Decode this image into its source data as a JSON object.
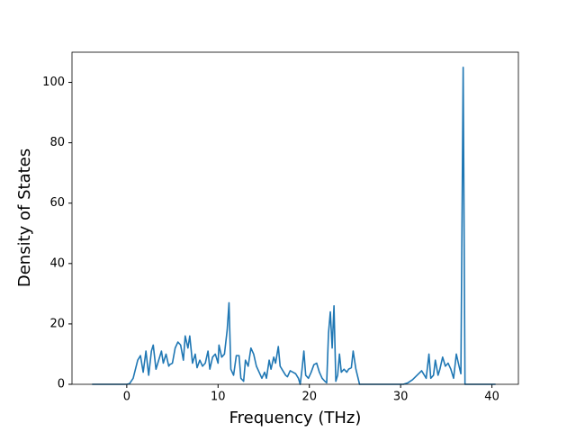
{
  "chart_data": {
    "type": "line",
    "xlabel": "Frequency (THz)",
    "ylabel": "Density of States",
    "xlim": [
      -6.0,
      42.9
    ],
    "ylim": [
      0,
      110
    ],
    "xticks": [
      0,
      10,
      20,
      30,
      40
    ],
    "yticks": [
      0,
      20,
      40,
      60,
      80,
      100
    ],
    "series": [
      {
        "color": "#1f77b4",
        "x": [
          -3.8,
          0,
          0.3,
          0.7,
          1.2,
          1.5,
          1.8,
          2.1,
          2.4,
          2.7,
          2.9,
          3.2,
          3.5,
          3.8,
          4.0,
          4.3,
          4.6,
          4.7,
          5.0,
          5.3,
          5.6,
          5.9,
          6.2,
          6.4,
          6.7,
          6.9,
          7.2,
          7.5,
          7.7,
          8.0,
          8.3,
          8.6,
          8.9,
          9.1,
          9.4,
          9.7,
          10.0,
          10.1,
          10.4,
          10.7,
          11.0,
          11.2,
          11.4,
          11.7,
          12.0,
          12.3,
          12.5,
          12.8,
          13.0,
          13.3,
          13.6,
          13.9,
          14.2,
          14.5,
          14.8,
          15.1,
          15.3,
          15.6,
          15.8,
          16.1,
          16.3,
          16.6,
          16.8,
          17.1,
          17.4,
          17.6,
          17.9,
          18.2,
          18.5,
          18.8,
          19.0,
          19.2,
          19.4,
          19.6,
          19.9,
          20.2,
          20.5,
          20.8,
          21.1,
          21.4,
          21.7,
          21.9,
          22.1,
          22.3,
          22.5,
          22.7,
          22.9,
          23.1,
          23.3,
          23.5,
          23.8,
          24.1,
          24.3,
          24.6,
          24.8,
          25.1,
          25.5,
          30.3,
          30.8,
          31.3,
          31.8,
          32.3,
          32.6,
          32.8,
          33.1,
          33.3,
          33.6,
          33.8,
          34.1,
          34.3,
          34.6,
          34.9,
          35.2,
          35.5,
          35.8,
          36.1,
          36.4,
          36.6,
          36.85,
          37.05,
          37.5,
          40.4
        ],
        "values": [
          0,
          0,
          0.2,
          2,
          8,
          9.5,
          4,
          11,
          3,
          11,
          13,
          5,
          8,
          11,
          7,
          10,
          6,
          6.5,
          7,
          12,
          14,
          13,
          8,
          16,
          12,
          16,
          7,
          10,
          5.5,
          8,
          6,
          7,
          11,
          5,
          9,
          10,
          7,
          13,
          9,
          10,
          18,
          27,
          5,
          3,
          9.5,
          9.5,
          2,
          1,
          8,
          6,
          12,
          10,
          6,
          4,
          2,
          4,
          2,
          8,
          5,
          9,
          7,
          12.5,
          6,
          4.5,
          3,
          2.5,
          4.5,
          4,
          3.5,
          2,
          0,
          5,
          11,
          3,
          2,
          4,
          6.5,
          7,
          4,
          2,
          1,
          0.5,
          17,
          24,
          12,
          26,
          1,
          3,
          10,
          4,
          5,
          4,
          5,
          5.5,
          11,
          5,
          0,
          0,
          0.5,
          1.5,
          3,
          4.5,
          3,
          2,
          10,
          2,
          3,
          8,
          3,
          5,
          9,
          6,
          7,
          5,
          2,
          10,
          6,
          3.5,
          105,
          0,
          0,
          0
        ]
      }
    ]
  }
}
